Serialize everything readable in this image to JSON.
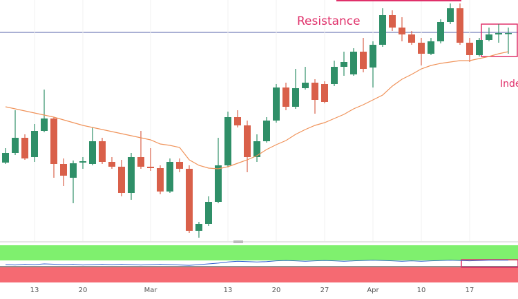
{
  "chart_data": {
    "type": "candlestick",
    "categories": [
      null,
      null,
      null,
      "13",
      null,
      null,
      null,
      null,
      "20",
      null,
      null,
      null,
      null,
      null,
      null,
      "Mar",
      null,
      null,
      null,
      null,
      null,
      null,
      null,
      "13",
      null,
      null,
      null,
      null,
      "20",
      null,
      null,
      null,
      null,
      "27",
      null,
      null,
      null,
      null,
      "Apr",
      null,
      null,
      null,
      null,
      "10",
      null,
      null,
      null,
      null,
      "17",
      null,
      null,
      null,
      null
    ],
    "open": [
      114,
      128,
      150,
      122,
      160,
      178,
      112,
      92,
      114,
      112,
      145,
      115,
      108,
      70,
      122,
      108,
      106,
      72,
      115,
      105,
      15,
      25,
      57,
      110,
      180,
      168,
      122,
      145,
      175,
      223,
      195,
      222,
      230,
      228,
      228,
      253,
      242,
      275,
      252,
      285,
      328,
      310,
      300,
      288,
      272,
      290,
      318,
      338,
      288,
      270,
      292,
      300,
      302
    ],
    "high": [
      135,
      190,
      155,
      170,
      220,
      180,
      120,
      117,
      122,
      165,
      150,
      122,
      118,
      128,
      160,
      135,
      110,
      120,
      120,
      110,
      28,
      65,
      150,
      188,
      190,
      175,
      155,
      180,
      228,
      230,
      250,
      253,
      235,
      232,
      262,
      275,
      280,
      295,
      290,
      338,
      335,
      325,
      305,
      295,
      295,
      322,
      345,
      345,
      295,
      295,
      310,
      315,
      310
    ],
    "low": [
      112,
      125,
      118,
      115,
      158,
      92,
      80,
      55,
      105,
      110,
      112,
      105,
      65,
      60,
      105,
      102,
      68,
      70,
      100,
      12,
      5,
      22,
      55,
      107,
      165,
      100,
      115,
      143,
      172,
      190,
      192,
      220,
      185,
      200,
      225,
      240,
      240,
      245,
      223,
      282,
      305,
      290,
      285,
      255,
      270,
      287,
      315,
      285,
      260,
      268,
      290,
      288,
      272
    ],
    "close": [
      128,
      150,
      120,
      160,
      178,
      112,
      95,
      113,
      116,
      145,
      115,
      108,
      70,
      122,
      108,
      106,
      72,
      115,
      105,
      15,
      25,
      57,
      110,
      180,
      168,
      122,
      145,
      175,
      223,
      195,
      222,
      230,
      205,
      202,
      253,
      260,
      275,
      250,
      285,
      328,
      310,
      300,
      288,
      272,
      290,
      318,
      338,
      288,
      270,
      292,
      300,
      302,
      302
    ],
    "ma": [
      195,
      192,
      189,
      186,
      183,
      180,
      176,
      172,
      168,
      165,
      162,
      159,
      156,
      153,
      150,
      147,
      141,
      139,
      136,
      118,
      110,
      106,
      105,
      108,
      113,
      118,
      124,
      133,
      140,
      146,
      155,
      162,
      168,
      172,
      178,
      184,
      192,
      198,
      205,
      212,
      225,
      235,
      242,
      250,
      255,
      258,
      260,
      262,
      262,
      265,
      268,
      272,
      275
    ],
    "ylim": [
      0,
      350
    ],
    "up_color": "#2f8f68",
    "down_color": "#d9604a",
    "ma_color": "#f0935a",
    "level": {
      "label": "Resistance",
      "value": 303,
      "color": "#5560a8"
    },
    "annotation": "Inde",
    "indicator": {
      "color": "#3060d0",
      "ylim": [
        0,
        100
      ],
      "values": [
        48,
        47,
        49,
        48,
        50,
        49,
        48,
        49,
        47,
        48,
        49,
        48,
        49,
        48,
        47,
        48,
        49,
        48,
        47,
        46,
        48,
        50,
        52,
        55,
        57,
        56,
        55,
        56,
        58,
        59,
        58,
        57,
        58,
        59,
        58,
        57,
        58,
        59,
        60,
        59,
        58,
        57,
        58,
        57,
        58,
        59,
        60,
        59,
        58,
        59,
        60,
        60,
        60
      ]
    }
  }
}
